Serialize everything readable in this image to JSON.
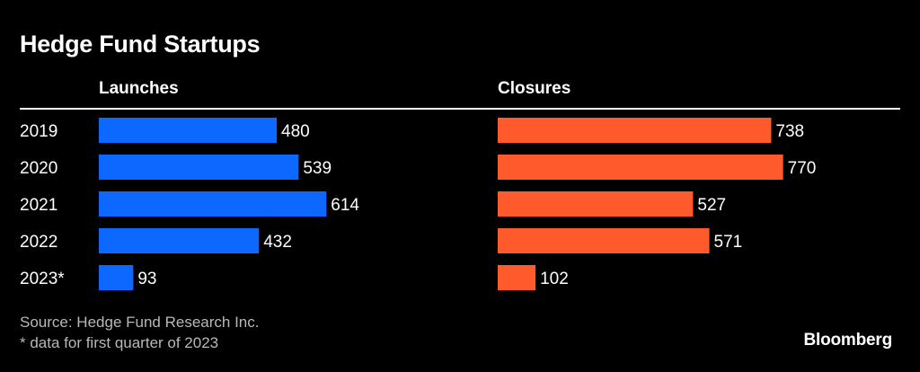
{
  "chart_data": {
    "type": "bar",
    "orientation": "horizontal",
    "title": "Hedge Fund Startups",
    "categories": [
      "2019",
      "2020",
      "2021",
      "2022",
      "2023*"
    ],
    "series": [
      {
        "name": "Launches",
        "values": [
          480,
          539,
          614,
          432,
          93
        ],
        "color": "#0c68ff"
      },
      {
        "name": "Closures",
        "values": [
          738,
          770,
          527,
          571,
          102
        ],
        "color": "#ff5a2c"
      }
    ],
    "xlim": [
      0,
      800
    ],
    "grid": false,
    "legend": "none"
  },
  "footer": {
    "source": "Source: Hedge Fund Research Inc.",
    "note": "* data for first quarter of 2023",
    "brand": "Bloomberg"
  }
}
